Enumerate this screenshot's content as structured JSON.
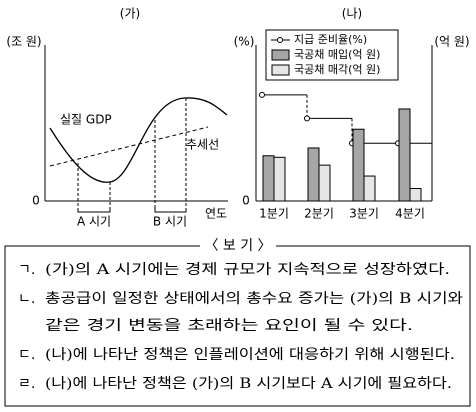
{
  "chart_data": [
    {
      "type": "line",
      "title": "(가)",
      "y_label": "(조 원)",
      "x_label": "연도",
      "origin_label": "0",
      "series_label": "실질 GDP",
      "trend_label": "추세선",
      "periods": [
        "A 시기",
        "B 시기"
      ]
    },
    {
      "type": "bar",
      "title": "(나)",
      "y_label": "(%)",
      "y2_label": "(억 원)",
      "origin_label": "0",
      "categories": [
        "1분기",
        "2분기",
        "3분기",
        "4분기"
      ],
      "ylim": [
        0,
        100
      ],
      "y2lim": [
        0,
        100
      ],
      "series": [
        {
          "name": "지급 준비율(%)",
          "type": "line",
          "color": "#000000",
          "values": [
            68,
            53,
            37,
            37
          ]
        },
        {
          "name": "국공채 매입(억 원)",
          "axis": "y2",
          "color": "#a6a6a6",
          "values": [
            29,
            34,
            46,
            59
          ]
        },
        {
          "name": "국공채 매각(억 원)",
          "axis": "y2",
          "color": "#e6e6e6",
          "values": [
            28,
            23,
            16,
            8
          ]
        }
      ]
    }
  ],
  "box": {
    "title": "〈 보 기 〉",
    "items": [
      {
        "label": "ㄱ.",
        "lines": [
          "(가)의 A 시기에는 경제 규모가 지속적으로 성장하였다."
        ]
      },
      {
        "label": "ㄴ.",
        "lines": [
          "총공급이 일정한 상태에서의 총수요 증가는 (가)의 B 시기와",
          "같은 경기 변동을 초래하는 요인이 될 수 있다."
        ]
      },
      {
        "label": "ㄷ.",
        "lines": [
          "(나)에 나타난 정책은 인플레이션에 대응하기 위해 시행된다."
        ]
      },
      {
        "label": "ㄹ.",
        "lines": [
          "(나)에 나타난 정책은 (가)의 B 시기보다 A 시기에 필요하다."
        ]
      }
    ]
  }
}
